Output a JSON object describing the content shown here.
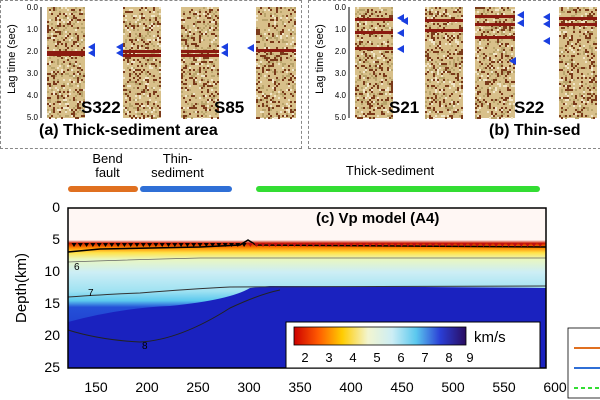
{
  "panel_a": {
    "ylabel": "Lag time (sec)",
    "yticks": [
      "0.0",
      "1.0",
      "2.0",
      "3.0",
      "4.0",
      "5.0"
    ],
    "stations": [
      "S322",
      "S85"
    ],
    "caption": "(a) Thick-sediment area"
  },
  "panel_b": {
    "ylabel": "Lag time (sec)",
    "yticks": [
      "0.0",
      "1.0",
      "2.0",
      "3.0",
      "4.0",
      "5.0"
    ],
    "stations": [
      "S21",
      "S22"
    ],
    "caption": "(b) Thin-sed"
  },
  "segments": {
    "bend": "Bend fault",
    "thin": "Thin-sediment",
    "thick": "Thick-sediment"
  },
  "panel_c": {
    "title": "(c) Vp model (A4)",
    "ylabel": "Depth(km)",
    "yticks": [
      "0",
      "5",
      "10",
      "15",
      "20",
      "25"
    ],
    "xticks": [
      "150",
      "200",
      "250",
      "300",
      "350",
      "400",
      "450",
      "500",
      "550",
      "600"
    ],
    "contour_labels": [
      "6",
      "7",
      "8"
    ],
    "colorbar_ticks": [
      "2",
      "3",
      "4",
      "5",
      "6",
      "7",
      "8",
      "9"
    ],
    "colorbar_unit": "km/s"
  },
  "colors": {
    "bend": "#e07020",
    "thin": "#2f6fd6",
    "thick": "#33dd33",
    "arrow": "#1a3fe0"
  }
}
